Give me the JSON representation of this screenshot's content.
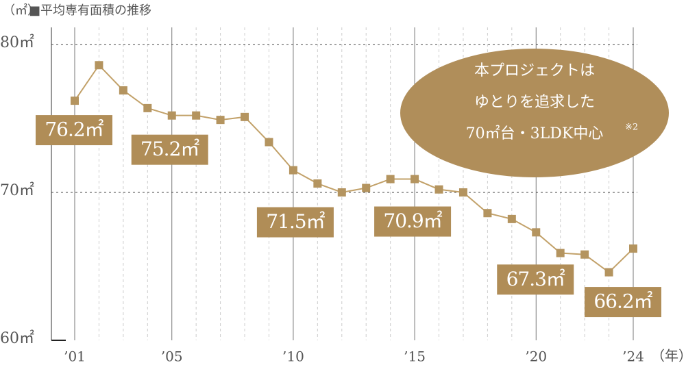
{
  "chart_data": {
    "type": "line",
    "title": "■平均専有面積の推移",
    "y_label": "（㎡）",
    "x_label": "（年）",
    "categories": [
      "’01",
      null,
      null,
      null,
      "’05",
      null,
      null,
      null,
      null,
      "’10",
      null,
      null,
      null,
      null,
      "’15",
      null,
      null,
      null,
      null,
      "’20",
      null,
      null,
      null,
      "’24"
    ],
    "series": [
      {
        "name": "平均専有面積",
        "color": "#c2a169",
        "values": [
          76.2,
          78.6,
          76.9,
          75.7,
          75.2,
          75.2,
          74.9,
          75.1,
          73.4,
          71.5,
          70.6,
          70.0,
          70.3,
          70.9,
          70.9,
          70.2,
          70.0,
          68.6,
          68.2,
          67.3,
          65.9,
          65.8,
          64.6,
          66.2
        ],
        "value_labels": [
          "76.2㎡",
          null,
          null,
          null,
          "75.2㎡",
          null,
          null,
          null,
          null,
          "71.5㎡",
          null,
          null,
          null,
          null,
          "70.9㎡",
          null,
          null,
          null,
          null,
          "67.3㎡",
          null,
          null,
          null,
          "66.2㎡"
        ]
      }
    ],
    "ylim": [
      60,
      80
    ],
    "yticks": [
      {
        "value": 60,
        "label": "60㎡"
      },
      {
        "value": 70,
        "label": "70㎡"
      },
      {
        "value": 80,
        "label": "80㎡"
      }
    ],
    "grid": true,
    "annotation": {
      "lines": [
        "本プロジェクトは",
        "ゆとりを追求した",
        "70㎡台・3LDK中心"
      ],
      "note": "※2"
    }
  }
}
